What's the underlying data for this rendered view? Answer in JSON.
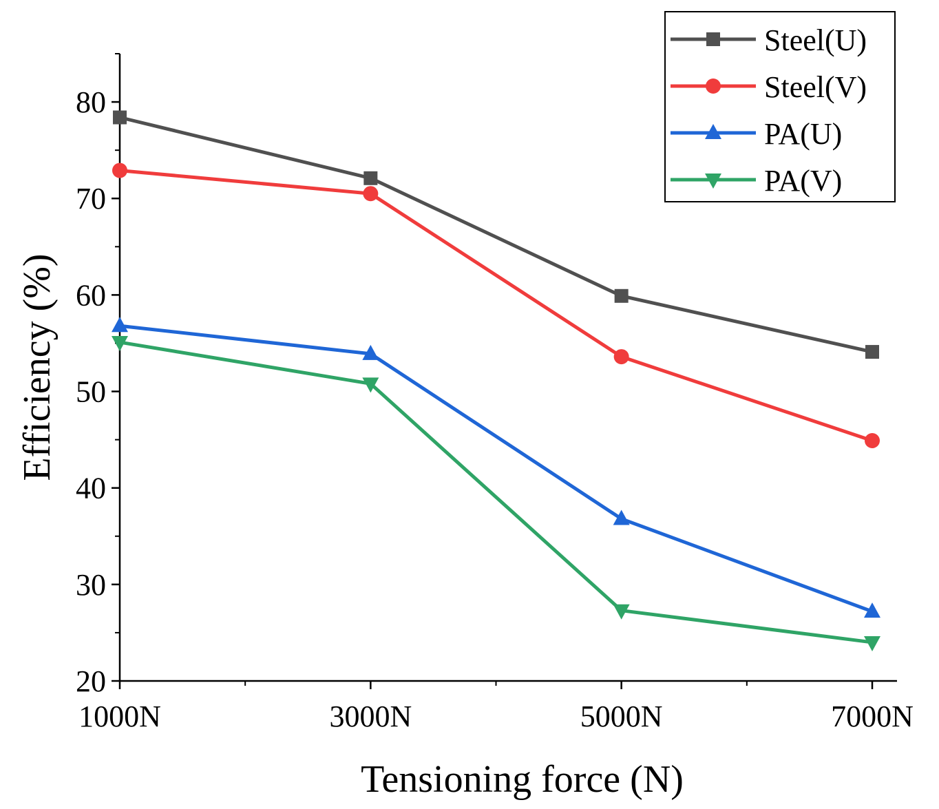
{
  "chart_data": {
    "type": "line",
    "title": "",
    "xlabel": "Tensioning force (N)",
    "ylabel": "Efficiency (%)",
    "categories": [
      "1000N",
      "3000N",
      "5000N",
      "7000N"
    ],
    "x_minor_ticks": 1,
    "ylim": [
      20,
      85
    ],
    "yticks": [
      20,
      30,
      40,
      50,
      60,
      70,
      80
    ],
    "grid": false,
    "legend_position": "top-right",
    "series": [
      {
        "name": "Steel(U)",
        "color": "#505050",
        "marker": "square",
        "values": [
          78.4,
          72.1,
          59.9,
          54.1
        ]
      },
      {
        "name": "Steel(V)",
        "color": "#f03c3c",
        "marker": "circle",
        "values": [
          72.9,
          70.5,
          53.6,
          44.9
        ]
      },
      {
        "name": "PA(U)",
        "color": "#1f66d6",
        "marker": "triangle-up",
        "values": [
          56.8,
          53.9,
          36.8,
          27.2
        ]
      },
      {
        "name": "PA(V)",
        "color": "#2fa466",
        "marker": "triangle-down",
        "values": [
          55.1,
          50.8,
          27.3,
          24.0
        ]
      }
    ]
  }
}
